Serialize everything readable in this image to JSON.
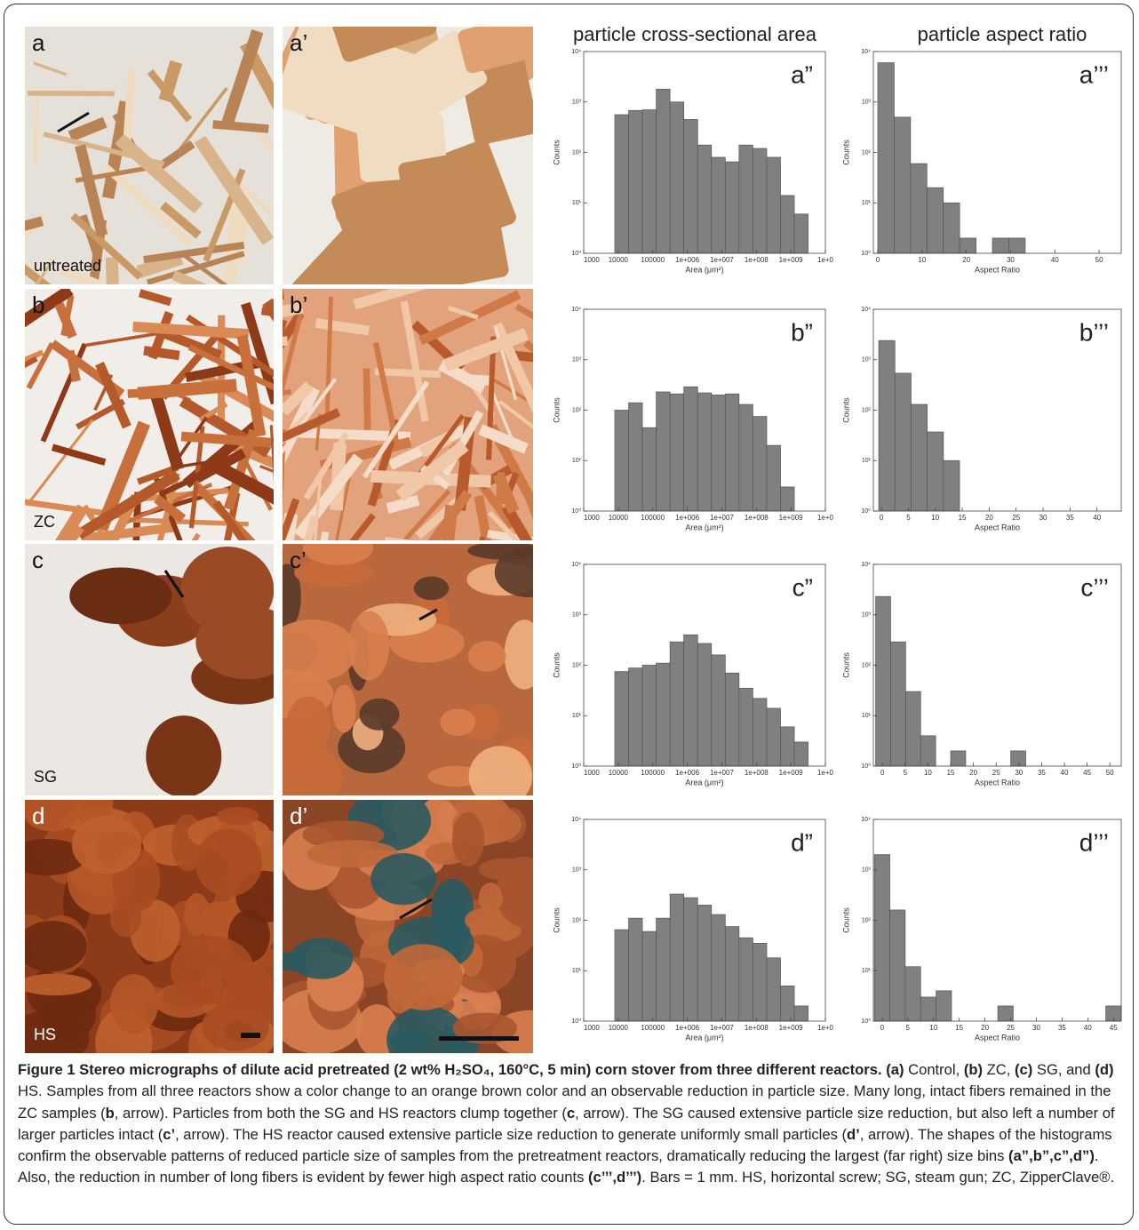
{
  "column_titles": [
    "particle cross-sectional area",
    "particle aspect ratio"
  ],
  "photos": [
    {
      "label": "a",
      "caption": "untreated"
    },
    {
      "label": "a’"
    },
    {
      "label": "b",
      "caption": "ZC"
    },
    {
      "label": "b’"
    },
    {
      "label": "c",
      "caption": "SG"
    },
    {
      "label": "c’"
    },
    {
      "label": "d",
      "caption": "HS"
    },
    {
      "label": "d’"
    }
  ],
  "chart_data": [
    {
      "type": "histogram",
      "panel_label": "a”",
      "xlabel": "Area (μm²)",
      "ylabel": "Counts",
      "log_x": true,
      "log_y": true,
      "color": "#808080",
      "bins": [
        7940,
        20000,
        50100,
        126000,
        316000,
        794000,
        2000000,
        5010000,
        12600000,
        31600000,
        79400000,
        200000000,
        501000000,
        1260000000,
        3160000000
      ],
      "values": [
        560,
        680,
        700,
        1800,
        1000,
        450,
        140,
        80,
        65,
        140,
        120,
        80,
        14,
        6
      ],
      "xlim": [
        1000,
        10000000000
      ],
      "ylim": [
        1,
        10000
      ],
      "xticks": [
        1000,
        10000,
        100000,
        {
          "value": 1000000,
          "label": "1e+006"
        },
        {
          "value": 10000000,
          "label": "1e+007"
        },
        {
          "value": 100000000,
          "label": "1e+008"
        },
        {
          "value": 1000000000,
          "label": "1e+009"
        },
        {
          "value": 10000000000,
          "label": "1e+0"
        }
      ],
      "yticks": [
        {
          "value": 1,
          "label": "10⁰"
        },
        {
          "value": 10,
          "label": "10¹"
        },
        {
          "value": 100,
          "label": "10²"
        },
        {
          "value": 1000,
          "label": "10³"
        },
        {
          "value": 10000,
          "label": "10⁴"
        }
      ]
    },
    {
      "type": "histogram",
      "panel_label": "a’’’",
      "xlabel": "Aspect Ratio",
      "ylabel": "Counts",
      "log_x": false,
      "log_y": true,
      "color": "#808080",
      "bins": [
        0,
        3.7,
        7.4,
        11.1,
        14.8,
        18.5,
        22.2,
        25.9,
        29.6,
        33.3
      ],
      "values": [
        6000,
        500,
        60,
        20,
        10,
        2,
        0,
        2,
        2
      ],
      "xlim": [
        -1,
        55
      ],
      "ylim": [
        1,
        10000
      ],
      "xticks": [
        0,
        10,
        20,
        30,
        40,
        50
      ],
      "yticks": [
        {
          "value": 1,
          "label": "10⁰"
        },
        {
          "value": 10,
          "label": "10¹"
        },
        {
          "value": 100,
          "label": "10²"
        },
        {
          "value": 1000,
          "label": "10³"
        },
        {
          "value": 10000,
          "label": "10⁴"
        }
      ]
    },
    {
      "type": "histogram",
      "panel_label": "b”",
      "xlabel": "Area (μm²)",
      "ylabel": "Counts",
      "log_x": true,
      "log_y": true,
      "color": "#808080",
      "bins": [
        7940,
        20000,
        50100,
        126000,
        316000,
        794000,
        2000000,
        5010000,
        12600000,
        31600000,
        79400000,
        200000000,
        501000000,
        1260000000
      ],
      "values": [
        100,
        140,
        45,
        230,
        210,
        290,
        220,
        200,
        210,
        130,
        75,
        20,
        3
      ],
      "xlim": [
        1000,
        10000000000
      ],
      "ylim": [
        1,
        10000
      ],
      "xticks": [
        1000,
        10000,
        100000,
        {
          "value": 1000000,
          "label": "1e+006"
        },
        {
          "value": 10000000,
          "label": "1e+007"
        },
        {
          "value": 100000000,
          "label": "1e+008"
        },
        {
          "value": 1000000000,
          "label": "1e+009"
        },
        {
          "value": 10000000000,
          "label": "1e+0"
        }
      ],
      "yticks": [
        {
          "value": 1,
          "label": "10⁰"
        },
        {
          "value": 10,
          "label": "10¹"
        },
        {
          "value": 100,
          "label": "10²"
        },
        {
          "value": 1000,
          "label": "10³"
        },
        {
          "value": 10000,
          "label": "10⁴"
        }
      ]
    },
    {
      "type": "histogram",
      "panel_label": "b’’’",
      "xlabel": "Aspect Ratio",
      "ylabel": "Counts",
      "log_x": false,
      "log_y": true,
      "color": "#808080",
      "bins": [
        -0.5,
        2.5,
        5.5,
        8.5,
        11.5,
        14.5
      ],
      "values": [
        2400,
        540,
        130,
        37,
        10
      ],
      "xlim": [
        -1.5,
        44.5
      ],
      "ylim": [
        1,
        10000
      ],
      "xticks": [
        0,
        5,
        10,
        15,
        20,
        25,
        30,
        35,
        40
      ],
      "yticks": [
        {
          "value": 1,
          "label": "10⁰"
        },
        {
          "value": 10,
          "label": "10¹"
        },
        {
          "value": 100,
          "label": "10²"
        },
        {
          "value": 1000,
          "label": "10³"
        },
        {
          "value": 10000,
          "label": "10⁴"
        }
      ]
    },
    {
      "type": "histogram",
      "panel_label": "c”",
      "xlabel": "Area (μm²)",
      "ylabel": "Counts",
      "log_x": true,
      "log_y": true,
      "color": "#808080",
      "bins": [
        7940,
        20000,
        50100,
        126000,
        316000,
        794000,
        2000000,
        5010000,
        12600000,
        31600000,
        79400000,
        200000000,
        501000000,
        1260000000,
        3160000000
      ],
      "values": [
        75,
        88,
        100,
        110,
        290,
        400,
        270,
        160,
        70,
        35,
        22,
        14,
        6,
        3
      ],
      "xlim": [
        1000,
        10000000000
      ],
      "ylim": [
        1,
        10000
      ],
      "xticks": [
        1000,
        10000,
        100000,
        {
          "value": 1000000,
          "label": "1e+006"
        },
        {
          "value": 10000000,
          "label": "1e+007"
        },
        {
          "value": 100000000,
          "label": "1e+008"
        },
        {
          "value": 1000000000,
          "label": "1e+009"
        },
        {
          "value": 10000000000,
          "label": "1e+0"
        }
      ],
      "yticks": [
        {
          "value": 1,
          "label": "10⁰"
        },
        {
          "value": 10,
          "label": "10¹"
        },
        {
          "value": 100,
          "label": "10²"
        },
        {
          "value": 1000,
          "label": "10³"
        },
        {
          "value": 10000,
          "label": "10⁴"
        }
      ]
    },
    {
      "type": "histogram",
      "panel_label": "c’’’",
      "xlabel": "Aspect Ratio",
      "ylabel": "Counts",
      "log_x": false,
      "log_y": true,
      "color": "#808080",
      "bins": [
        -1.5,
        1.8,
        5.1,
        8.4,
        11.7,
        15,
        18.3,
        21.6,
        24.9,
        28.2,
        31.5
      ],
      "values": [
        2300,
        290,
        30,
        4,
        0,
        2,
        0,
        0,
        0,
        2
      ],
      "xlim": [
        -2,
        52.5
      ],
      "ylim": [
        1,
        10000
      ],
      "xticks": [
        0,
        5,
        10,
        15,
        20,
        25,
        30,
        35,
        40,
        45,
        50
      ],
      "yticks": [
        {
          "value": 1,
          "label": "10⁰"
        },
        {
          "value": 10,
          "label": "10¹"
        },
        {
          "value": 100,
          "label": "10²"
        },
        {
          "value": 1000,
          "label": "10³"
        },
        {
          "value": 10000,
          "label": "10⁴"
        }
      ]
    },
    {
      "type": "histogram",
      "panel_label": "d”",
      "xlabel": "Area (μm²)",
      "ylabel": "Counts",
      "log_x": true,
      "log_y": true,
      "color": "#808080",
      "bins": [
        7940,
        20000,
        50100,
        126000,
        316000,
        794000,
        2000000,
        5010000,
        12600000,
        31600000,
        79400000,
        200000000,
        501000000,
        1260000000,
        3160000000
      ],
      "values": [
        65,
        110,
        60,
        110,
        330,
        280,
        200,
        130,
        75,
        45,
        35,
        18,
        5,
        2
      ],
      "xlim": [
        1000,
        10000000000
      ],
      "ylim": [
        1,
        10000
      ],
      "xticks": [
        1000,
        10000,
        100000,
        {
          "value": 1000000,
          "label": "1e+006"
        },
        {
          "value": 10000000,
          "label": "1e+007"
        },
        {
          "value": 100000000,
          "label": "1e+008"
        },
        {
          "value": 1000000000,
          "label": "1e+009"
        },
        {
          "value": 10000000000,
          "label": "1e+0"
        }
      ],
      "yticks": [
        {
          "value": 1,
          "label": "10⁰"
        },
        {
          "value": 10,
          "label": "10¹"
        },
        {
          "value": 100,
          "label": "10²"
        },
        {
          "value": 1000,
          "label": "10³"
        },
        {
          "value": 10000,
          "label": "10⁴"
        }
      ]
    },
    {
      "type": "histogram",
      "panel_label": "d’’’",
      "xlabel": "Aspect Ratio",
      "ylabel": "Counts",
      "log_x": false,
      "log_y": true,
      "color": "#808080",
      "bins": [
        -1.5,
        1.5,
        4.5,
        7.5,
        10.5,
        13.5,
        16.5,
        19.5,
        22.5,
        25.5,
        28.5,
        31.5,
        34.5,
        37.5,
        40.5,
        43.5,
        46.5
      ],
      "values": [
        2000,
        160,
        12,
        3,
        4,
        0,
        0,
        0,
        2,
        0,
        0,
        0,
        0,
        0,
        0,
        2
      ],
      "xlim": [
        -1.7,
        46.5
      ],
      "ylim": [
        1,
        10000
      ],
      "xticks": [
        0,
        5,
        10,
        15,
        20,
        25,
        30,
        35,
        40,
        45
      ],
      "yticks": [
        {
          "value": 1,
          "label": "10⁰"
        },
        {
          "value": 10,
          "label": "10¹"
        },
        {
          "value": 100,
          "label": "10²"
        },
        {
          "value": 1000,
          "label": "10³"
        },
        {
          "value": 10000,
          "label": "10⁴"
        }
      ]
    }
  ],
  "caption": [
    {
      "text": "Figure 1 Stereo micrographs of dilute acid pretreated (2 wt% H₂SO₄, 160°C, 5 min) corn stover from three different reactors. (a)",
      "bold": true
    },
    {
      "text": " Control, ",
      "bold": false
    },
    {
      "text": "(b)",
      "bold": true
    },
    {
      "text": " ZC, ",
      "bold": false
    },
    {
      "text": "(c)",
      "bold": true
    },
    {
      "text": " SG, and ",
      "bold": false
    },
    {
      "text": "(d)",
      "bold": true
    },
    {
      "text": " HS. Samples from all three reactors show a color change to an orange brown color and an observable reduction in particle size. Many long, intact fibers remained in the ZC samples (",
      "bold": false
    },
    {
      "text": "b",
      "bold": true
    },
    {
      "text": ", arrow). Particles from both the SG and HS reactors clump together (",
      "bold": false
    },
    {
      "text": "c",
      "bold": true
    },
    {
      "text": ", arrow). The SG caused extensive particle size reduction, but also left a number of larger particles intact (",
      "bold": false
    },
    {
      "text": "c’",
      "bold": true
    },
    {
      "text": ", arrow). The HS reactor caused extensive particle size reduction to generate uniformly small particles (",
      "bold": false
    },
    {
      "text": "d’",
      "bold": true
    },
    {
      "text": ", arrow). The shapes of the histograms confirm the observable patterns of reduced particle size of samples from the pretreatment reactors, dramatically reducing the largest (far right) size bins ",
      "bold": false
    },
    {
      "text": "(a”,b”,c”,d”)",
      "bold": true
    },
    {
      "text": ". Also, the reduction in number of long fibers is evident by fewer high aspect ratio counts ",
      "bold": false
    },
    {
      "text": "(c’’’,d’’’)",
      "bold": true
    },
    {
      "text": ". Bars = 1 mm. HS, horizontal screw; SG, steam gun; ZC, ZipperClave®.",
      "bold": false
    }
  ]
}
